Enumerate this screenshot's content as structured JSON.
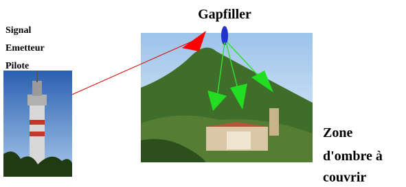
{
  "title": "Gapfiller",
  "source_label": {
    "lines": [
      "Signal",
      "Emetteur",
      "Pilote"
    ]
  },
  "target_label": {
    "lines": [
      "Zone",
      "d'ombre à",
      "couvrir"
    ]
  }
}
